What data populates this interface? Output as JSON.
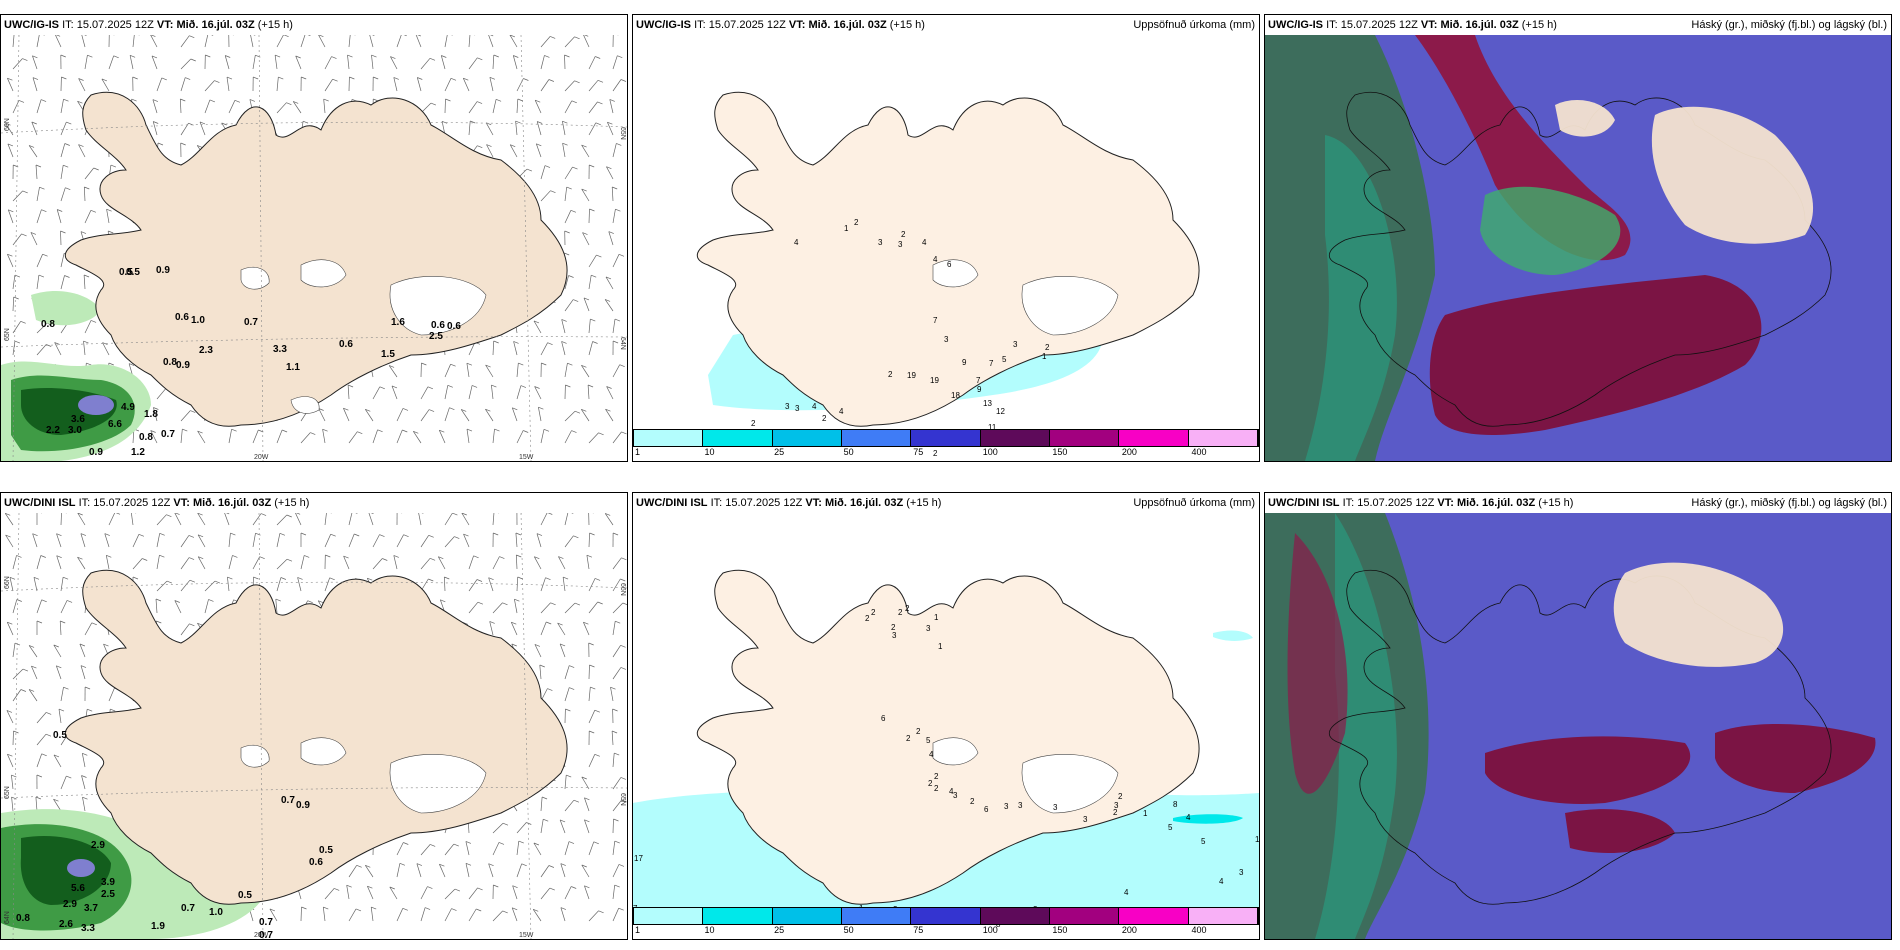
{
  "rows": [
    {
      "model": "UWC/IG-IS",
      "it_label": "IT:",
      "it_value": "15.07.2025 12Z",
      "vt_label": "VT:",
      "vt_value": "Mið. 16.júl. 03Z",
      "lead": "(+15 h)",
      "wind_labels": [
        "0.8",
        "0.9",
        "0.5",
        "0.5",
        "0.6",
        "1.0",
        "0.7",
        "2.3",
        "3.3",
        "1.1",
        "0.8",
        "0.9",
        "0.6",
        "1.5",
        "1.6",
        "0.6",
        "0.6",
        "2.5",
        "3.6",
        "4.9",
        "1.8",
        "2.2",
        "3.0",
        "6.6",
        "0.8",
        "0.7",
        "0.9",
        "1.2"
      ],
      "precip_labels": [
        "4",
        "1",
        "2",
        "3",
        "3",
        "2",
        "4",
        "4",
        "6",
        "7",
        "3",
        "9",
        "7",
        "3",
        "2",
        "1",
        "5",
        "2",
        "19",
        "19",
        "18",
        "7",
        "9",
        "13",
        "12",
        "11",
        "2",
        "2",
        "5",
        "3",
        "7",
        "4",
        "4",
        "3",
        "3",
        "2",
        "5",
        "2"
      ],
      "wind_axis": [
        "66N",
        "65N",
        "20W",
        "15W",
        "65N",
        "64N"
      ],
      "precip_axis": [
        "66N",
        "64N"
      ]
    },
    {
      "model": "UWC/DINI ISL",
      "it_label": "IT:",
      "it_value": "15.07.2025 12Z",
      "vt_label": "VT:",
      "vt_value": "Mið. 16.júl. 03Z",
      "lead": "(+15 h)",
      "wind_labels": [
        "0.5",
        "0.7",
        "0.9",
        "0.6",
        "0.5",
        "2.9",
        "3.9",
        "5.6",
        "2.5",
        "2.9",
        "3.7",
        "0.5",
        "0.7",
        "1.0",
        "0.8",
        "2.6",
        "3.3",
        "1.9",
        "0.7",
        "0.7"
      ],
      "precip_labels": [
        "2",
        "2",
        "2",
        "3",
        "2",
        "2",
        "1",
        "3",
        "1",
        "6",
        "2",
        "2",
        "5",
        "4",
        "2",
        "2",
        "2",
        "4",
        "3",
        "2",
        "6",
        "3",
        "3",
        "3",
        "3",
        "2",
        "3",
        "2",
        "1",
        "8",
        "4",
        "5",
        "5",
        "10",
        "17",
        "4",
        "3",
        "7",
        "8",
        "4",
        "6",
        "3",
        "8",
        "6",
        "3",
        "2",
        "1"
      ],
      "wind_axis": [
        "66N",
        "65N",
        "64N",
        "20W",
        "15W",
        "66N",
        "65N"
      ],
      "precip_axis": [
        "66N",
        "64N"
      ]
    }
  ],
  "precip_title": "Uppsöfnuð úrkoma (mm)",
  "cloud_title": "Háský (gr.), miðský (fj.bl.) og lágský (bl.)",
  "legend": {
    "ticks": [
      "1",
      "10",
      "25",
      "50",
      "75",
      "100",
      "150",
      "200",
      "400"
    ],
    "colors": [
      "#b3fdfd",
      "#00e8ea",
      "#00c0e8",
      "#3f7cf6",
      "#3434d0",
      "#5e0a5a",
      "#a2007f",
      "#f800c5",
      "#f8b0f6"
    ]
  }
}
